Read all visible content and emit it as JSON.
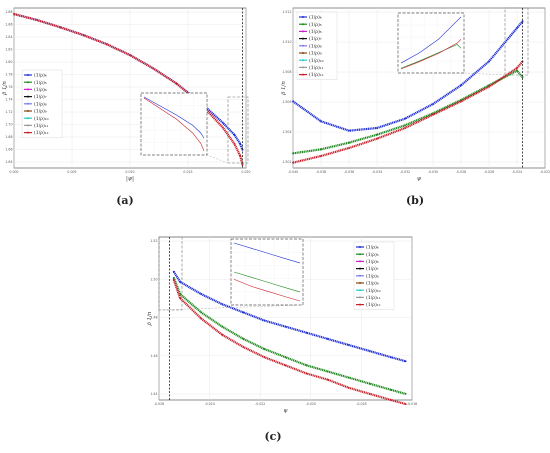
{
  "legend": [
    "(1/ρ)₄",
    "(1/ρ)₅",
    "(1/ρ)₆",
    "(1/ρ)₇",
    "(1/ρ)₈",
    "(1/ρ)₉",
    "(1/ρ)₁₀",
    "(1/ρ)₁₁",
    "(1/ρ)₁₂"
  ],
  "series_colors": [
    "#1f2fd6",
    "#1e8a1e",
    "#cc22cc",
    "#111111",
    "#7a7af0",
    "#8b4513",
    "#22cccc",
    "#999999",
    "#c8202a"
  ],
  "chart_data": [
    {
      "type": "line",
      "caption": "(a)",
      "xlabel": "|ψ|",
      "ylabel": "ρ̄ 1/n",
      "xlim": [
        0.0,
        0.02
      ],
      "ylim": [
        1.625,
        1.89
      ],
      "xticks": [
        "0.000",
        "0.005",
        "0.010",
        "0.015",
        "0.020"
      ],
      "yticks": [
        "1.88",
        "1.86",
        "1.84",
        "1.82",
        "1.80",
        "1.78",
        "1.76",
        "1.74",
        "1.72",
        "1.70",
        "1.68",
        "1.66",
        "1.64"
      ],
      "critical_x": 0.0197,
      "legend_position": "center-left",
      "inset": true,
      "x": [
        0.0,
        0.002,
        0.004,
        0.006,
        0.008,
        0.01,
        0.012,
        0.014,
        0.016,
        0.018,
        0.019,
        0.0195,
        0.0197
      ],
      "series": [
        {
          "name": "(1/ρ)₄",
          "values": [
            1.88,
            1.87,
            1.858,
            1.845,
            1.83,
            1.812,
            1.79,
            1.765,
            1.735,
            1.7,
            1.68,
            1.665,
            1.655
          ]
        },
        {
          "name": "(1/ρ)₁₂",
          "values": [
            1.88,
            1.87,
            1.858,
            1.845,
            1.83,
            1.812,
            1.79,
            1.765,
            1.733,
            1.692,
            1.665,
            1.645,
            1.63
          ]
        }
      ]
    },
    {
      "type": "line",
      "caption": "(b)",
      "xlabel": "ψ",
      "ylabel": "ρ̄ 1/n",
      "xlim": [
        -0.04,
        -0.022
      ],
      "ylim": [
        1.501,
        1.513
      ],
      "xticks": [
        "-0.040",
        "-0.038",
        "-0.036",
        "-0.034",
        "-0.032",
        "-0.030",
        "-0.028",
        "-0.026",
        "-0.024",
        "-0.022"
      ],
      "yticks": [
        "1.512",
        "1.510",
        "1.508",
        "1.506",
        "1.504",
        "1.502"
      ],
      "critical_x": -0.0236,
      "legend_position": "top-left",
      "inset": true,
      "x": [
        -0.04,
        -0.038,
        -0.036,
        -0.034,
        -0.032,
        -0.03,
        -0.028,
        -0.026,
        -0.024,
        -0.0236
      ],
      "series": [
        {
          "name": "(1/ρ)₄",
          "values": [
            1.506,
            1.5045,
            1.5038,
            1.504,
            1.5047,
            1.5058,
            1.5072,
            1.509,
            1.5115,
            1.512
          ]
        },
        {
          "name": "(1/ρ)₅",
          "values": [
            1.5021,
            1.5024,
            1.5029,
            1.5035,
            1.5042,
            1.5051,
            1.5061,
            1.5072,
            1.5083,
            1.5078
          ]
        },
        {
          "name": "(1/ρ)₁₂",
          "values": [
            1.5014,
            1.5019,
            1.5025,
            1.5032,
            1.504,
            1.505,
            1.506,
            1.5071,
            1.5085,
            1.509
          ]
        }
      ]
    },
    {
      "type": "line",
      "caption": "(c)",
      "xlabel": "ψ",
      "ylabel": "ρ̄ 1/n",
      "xlim": [
        -0.028,
        -0.016
      ],
      "ylim": [
        1.44,
        1.52
      ],
      "xticks": [
        "-0.026",
        "-0.024",
        "-0.022",
        "-0.020",
        "-0.018",
        "-0.016"
      ],
      "yticks": [
        "1.52",
        "1.50",
        "1.48",
        "1.46",
        "1.44"
      ],
      "critical_x": -0.0275,
      "legend_position": "top-right",
      "inset": true,
      "x": [
        -0.0273,
        -0.027,
        -0.026,
        -0.025,
        -0.024,
        -0.023,
        -0.022,
        -0.021,
        -0.02,
        -0.019,
        -0.018,
        -0.017,
        -0.0163
      ],
      "series": [
        {
          "name": "(1/ρ)₄",
          "values": [
            1.503,
            1.498,
            1.492,
            1.487,
            1.483,
            1.479,
            1.476,
            1.473,
            1.47,
            1.467,
            1.464,
            1.461,
            1.459
          ]
        },
        {
          "name": "(1/ρ)₅",
          "values": [
            1.5,
            1.492,
            1.483,
            1.476,
            1.47,
            1.465,
            1.461,
            1.457,
            1.454,
            1.451,
            1.448,
            1.445,
            1.443
          ]
        },
        {
          "name": "(1/ρ)₁₂",
          "values": [
            1.499,
            1.49,
            1.48,
            1.472,
            1.466,
            1.461,
            1.457,
            1.453,
            1.45,
            1.446,
            1.443,
            1.44,
            1.438
          ]
        }
      ]
    }
  ]
}
